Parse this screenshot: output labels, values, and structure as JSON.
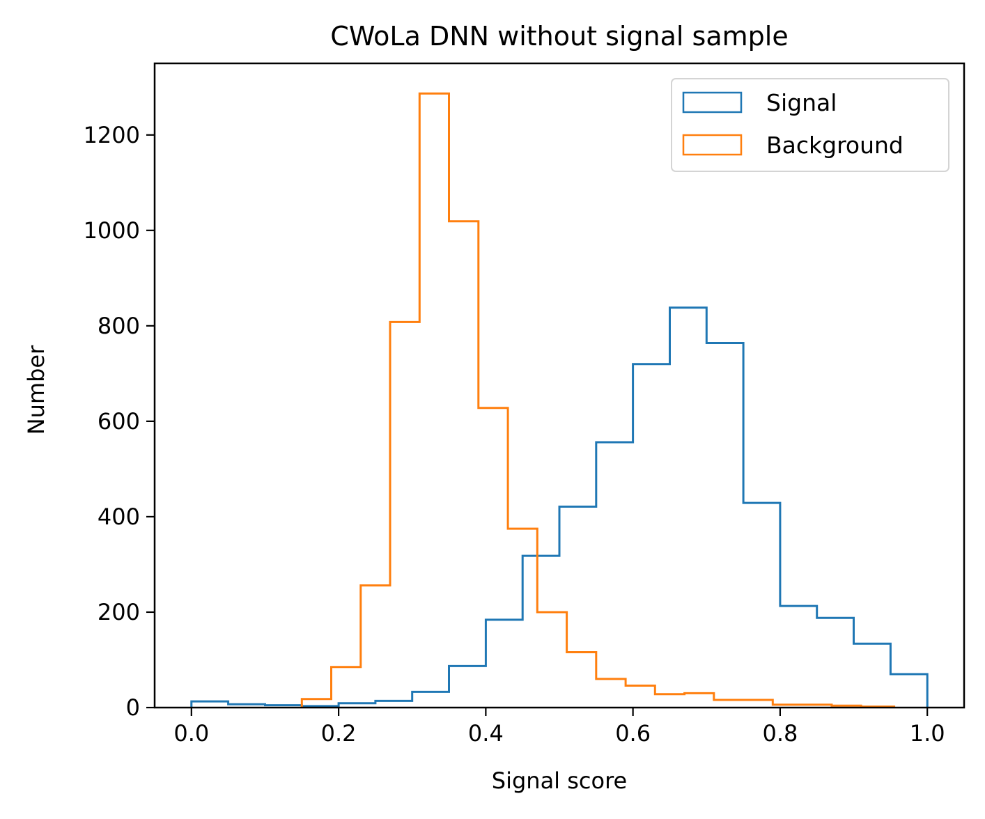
{
  "chart_data": {
    "type": "histogram",
    "title": "CWoLa DNN without signal sample",
    "xlabel": "Signal score",
    "ylabel": "Number",
    "xlim": [
      -0.05,
      1.05
    ],
    "ylim": [
      0,
      1350
    ],
    "x_ticks": [
      0.0,
      0.2,
      0.4,
      0.6,
      0.8,
      1.0
    ],
    "x_tick_labels": [
      "0.0",
      "0.2",
      "0.4",
      "0.6",
      "0.8",
      "1.0"
    ],
    "y_ticks": [
      0,
      200,
      400,
      600,
      800,
      1000,
      1200
    ],
    "y_tick_labels": [
      "0",
      "200",
      "400",
      "600",
      "800",
      "1000",
      "1200"
    ],
    "grid": false,
    "legend_position": "top-right",
    "series": [
      {
        "name": "Signal",
        "color": "#1f77b4",
        "histtype": "step",
        "bin_edges": [
          0.0,
          0.05,
          0.1,
          0.15,
          0.2,
          0.25,
          0.3,
          0.35,
          0.4,
          0.45,
          0.5,
          0.55,
          0.6,
          0.65,
          0.7,
          0.75,
          0.8,
          0.85,
          0.9,
          0.95,
          1.0
        ],
        "counts": [
          13,
          7,
          5,
          3,
          9,
          14,
          33,
          87,
          184,
          318,
          421,
          556,
          720,
          838,
          764,
          429,
          213,
          188,
          134,
          70
        ]
      },
      {
        "name": "Background",
        "color": "#ff7f0e",
        "histtype": "step",
        "bin_edges": [
          0.15,
          0.19,
          0.23,
          0.27,
          0.31,
          0.35,
          0.39,
          0.43,
          0.47,
          0.51,
          0.55,
          0.59,
          0.63,
          0.67,
          0.71,
          0.75,
          0.79,
          0.83,
          0.87,
          0.91,
          0.955
        ],
        "counts": [
          18,
          85,
          256,
          808,
          1287,
          1019,
          628,
          375,
          200,
          116,
          60,
          46,
          28,
          30,
          16,
          16,
          6,
          6,
          4,
          2
        ]
      }
    ]
  }
}
